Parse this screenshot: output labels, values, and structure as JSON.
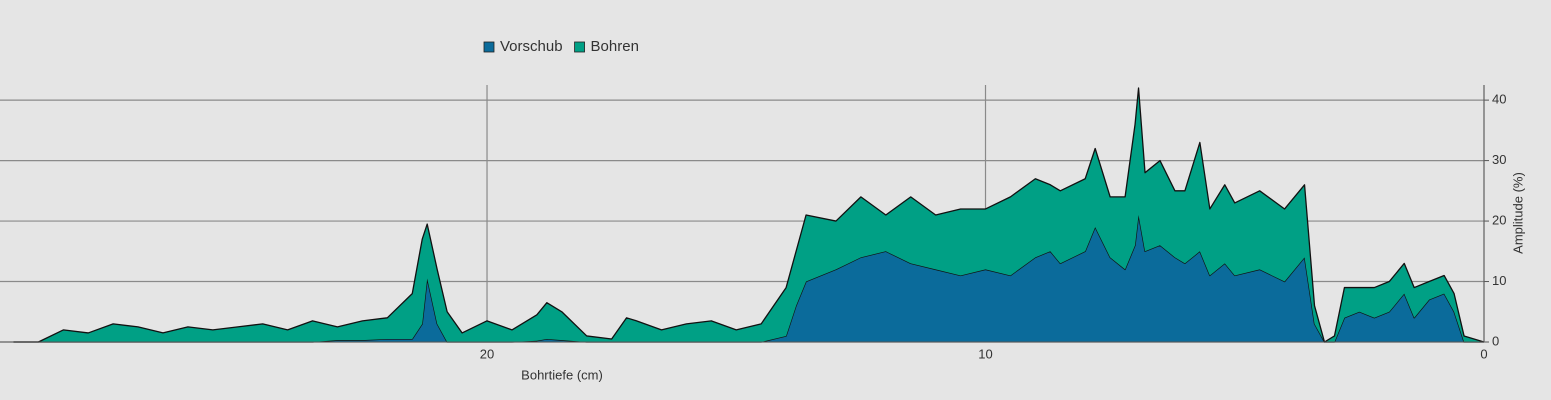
{
  "chart_data": {
    "type": "area",
    "stacked": true,
    "xlabel": "Bohrtiefe (cm)",
    "ylabel": "Amplitude (%)",
    "x": [
      29.5,
      29,
      28.5,
      28,
      27.5,
      27,
      26.5,
      26,
      25.5,
      25,
      24.5,
      24,
      23.5,
      23,
      22.5,
      22,
      21.5,
      21.3,
      21.2,
      21,
      20.8,
      20.5,
      20,
      19.5,
      19,
      18.8,
      18.5,
      18,
      17.5,
      17.2,
      17,
      16.5,
      16,
      15.5,
      15,
      14.5,
      14,
      13.8,
      13.6,
      13,
      12.5,
      12,
      11.5,
      11,
      10.5,
      10,
      9.5,
      9,
      8.7,
      8.5,
      8,
      7.8,
      7.5,
      7.2,
      7,
      6.93,
      6.8,
      6.5,
      6.2,
      6,
      5.7,
      5.5,
      5.2,
      5,
      4.5,
      4,
      3.6,
      3.4,
      3.2,
      3,
      2.8,
      2.5,
      2.2,
      1.9,
      1.6,
      1.4,
      1.1,
      0.8,
      0.6,
      0.4,
      0
    ],
    "series": [
      {
        "name": "Vorschub",
        "color": "#0b6b9b",
        "values": [
          0,
          0,
          0,
          0,
          0,
          0,
          0,
          0,
          0,
          0,
          0,
          0,
          0,
          0.3,
          0.3,
          0.5,
          0.5,
          3,
          10.5,
          3,
          0,
          0,
          0,
          0,
          0.2,
          0.5,
          0.3,
          0,
          0,
          0,
          0,
          0,
          0,
          0,
          0,
          0,
          1,
          6,
          10,
          12,
          14,
          15,
          13,
          12,
          11,
          12,
          11,
          14,
          15,
          13,
          15,
          19,
          14,
          12,
          16,
          21,
          15,
          16,
          14,
          13,
          15,
          11,
          13,
          11,
          12,
          10,
          14,
          3,
          0,
          0,
          4,
          5,
          4,
          5,
          8,
          4,
          7,
          8,
          5,
          0,
          0
        ]
      },
      {
        "name": "Bohren",
        "color": "#00a085",
        "values": [
          0,
          0,
          2,
          1.5,
          3,
          2.5,
          1.5,
          2.5,
          2,
          2.5,
          3,
          2,
          3.5,
          2.2,
          3.2,
          3.5,
          7.5,
          14,
          9,
          9,
          5,
          1.5,
          3.5,
          2,
          4.3,
          6,
          4.7,
          1,
          0.5,
          4,
          3.5,
          2,
          3,
          3.5,
          2,
          3,
          8,
          9,
          11,
          8,
          10,
          6,
          11,
          9,
          11,
          10,
          13,
          13,
          11,
          12,
          12,
          13,
          10,
          12,
          20,
          21,
          13,
          14,
          11,
          12,
          18,
          11,
          13,
          12,
          13,
          12,
          12,
          3,
          0,
          1,
          5,
          4,
          5,
          5,
          5,
          5,
          3,
          3,
          3,
          1,
          0
        ]
      }
    ],
    "xlim": [
      29.77,
      0
    ],
    "xticks": [
      20,
      10,
      0
    ],
    "ylim": [
      0,
      42.5
    ],
    "yticks": [
      0,
      10,
      20,
      30,
      40
    ],
    "grid": true,
    "legend": "top"
  }
}
